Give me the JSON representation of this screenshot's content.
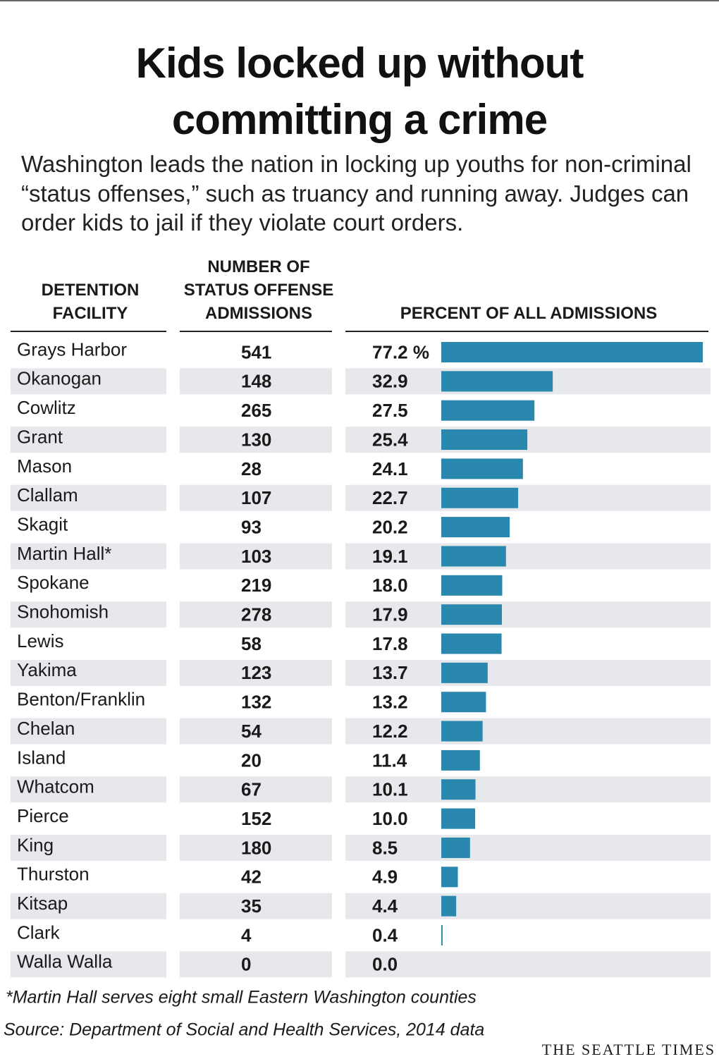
{
  "chart_data": {
    "type": "bar",
    "orientation": "horizontal",
    "title": "Kids locked up without committing a crime",
    "subtitle": "Washington leads the nation in locking up youths for non-criminal “status offenses,” such as truancy and running away. Judges can order kids to jail if they violate court orders.",
    "columns": [
      "DETENTION FACILITY",
      "NUMBER OF STATUS OFFENSE ADMISSIONS",
      "PERCENT OF ALL ADMISSIONS"
    ],
    "categories": [
      "Grays Harbor",
      "Okanogan",
      "Cowlitz",
      "Grant",
      "Mason",
      "Clallam",
      "Skagit",
      "Martin Hall*",
      "Spokane",
      "Snohomish",
      "Lewis",
      "Yakima",
      "Benton/Franklin",
      "Chelan",
      "Island",
      "Whatcom",
      "Pierce",
      "King",
      "Thurston",
      "Kitsap",
      "Clark",
      "Walla Walla"
    ],
    "admissions": [
      541,
      148,
      265,
      130,
      28,
      107,
      93,
      103,
      219,
      278,
      58,
      123,
      132,
      54,
      20,
      67,
      152,
      180,
      42,
      35,
      4,
      0
    ],
    "values": [
      77.2,
      32.9,
      27.5,
      25.4,
      24.1,
      22.7,
      20.2,
      19.1,
      18.0,
      17.9,
      17.8,
      13.7,
      13.2,
      12.2,
      11.4,
      10.1,
      10.0,
      8.5,
      4.9,
      4.4,
      0.4,
      0.0
    ],
    "value_labels": [
      "77.2 %",
      "32.9",
      "27.5",
      "25.4",
      "24.1",
      "22.7",
      "20.2",
      "19.1",
      "18.0",
      "17.9",
      "17.8",
      "13.7",
      "13.2",
      "12.2",
      "11.4",
      "10.1",
      "10.0",
      "8.5",
      "4.9",
      "4.4",
      "0.4",
      "0.0"
    ],
    "color": "#2a87ad",
    "note": "*Martin Hall serves eight small Eastern Washington counties",
    "source": "Source: Department of Social and Health Services, 2014 data",
    "credit": "THE SEATTLE TIMES"
  }
}
